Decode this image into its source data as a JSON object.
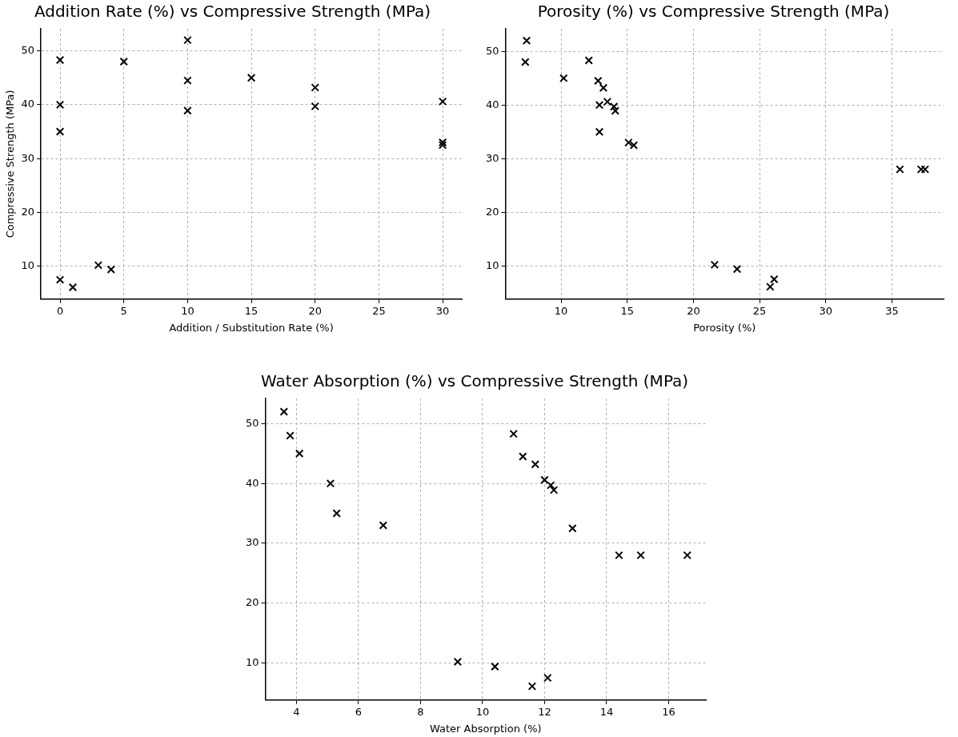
{
  "chart_data": [
    {
      "type": "scatter",
      "title": "Addition Rate (%) vs Compressive Strength (MPa)",
      "xlabel": "Addition / Substitution Rate (%)",
      "ylabel": "Compressive Strength (MPa)",
      "marker": "cross",
      "grid": true,
      "legend": false,
      "series": [
        {
          "color": "#000000",
          "x": [
            0,
            0,
            0,
            0,
            1,
            3,
            4,
            5,
            10,
            10,
            10,
            15,
            20,
            20,
            30,
            30,
            30
          ],
          "values": [
            48.3,
            40,
            35,
            7.5,
            6.1,
            10.2,
            9.4,
            48,
            52,
            44.5,
            38.9,
            45,
            43.2,
            39.7,
            40.6,
            33,
            32.5
          ]
        }
      ],
      "xlim": [
        -1.5,
        31.5
      ],
      "xticks": [
        0,
        5,
        10,
        15,
        20,
        25,
        30
      ],
      "ylim": [
        3.9,
        54.1
      ],
      "yticks": [
        10,
        20,
        30,
        40,
        50
      ]
    },
    {
      "type": "scatter",
      "title": "Porosity (%) vs Compressive Strength (MPa)",
      "xlabel": "Porosity (%)",
      "marker": "cross",
      "grid": true,
      "legend": false,
      "series": [
        {
          "color": "#000000",
          "x": [
            7.4,
            7.3,
            12.1,
            10.2,
            12.8,
            13.2,
            13.5,
            12.9,
            14.0,
            14.1,
            12.9,
            15.1,
            15.5,
            35.6,
            37.2,
            37.5,
            21.6,
            23.3,
            26.1,
            25.8
          ],
          "values": [
            52,
            48,
            48.3,
            45,
            44.5,
            43.2,
            40.6,
            40,
            39.7,
            38.9,
            35,
            33,
            32.5,
            28,
            28,
            28,
            10.2,
            9.4,
            7.5,
            6.1
          ]
        }
      ],
      "xlim": [
        5.8,
        38.9
      ],
      "xticks": [
        10,
        15,
        20,
        25,
        30,
        35
      ],
      "ylim": [
        3.8,
        54.2
      ],
      "yticks": [
        10,
        20,
        30,
        40,
        50
      ]
    },
    {
      "type": "scatter",
      "title": "Water Absorption (%) vs Compressive Strength (MPa)",
      "xlabel": "Water Absorption (%)",
      "marker": "cross",
      "grid": true,
      "legend": false,
      "series": [
        {
          "color": "#000000",
          "x": [
            3.6,
            3.8,
            4.1,
            5.1,
            5.3,
            6.8,
            11.0,
            11.3,
            11.7,
            12.0,
            12.2,
            12.3,
            12.9,
            14.4,
            15.1,
            16.6,
            9.2,
            10.4,
            11.6,
            12.1
          ],
          "values": [
            52,
            48,
            45,
            40,
            35,
            33,
            48.3,
            44.5,
            43.2,
            40.6,
            39.7,
            38.9,
            32.5,
            28,
            28,
            28,
            10.2,
            9.4,
            6.1,
            7.5
          ]
        }
      ],
      "xlim": [
        3.0,
        17.2
      ],
      "xticks": [
        4,
        6,
        8,
        10,
        12,
        14,
        16
      ],
      "ylim": [
        3.8,
        54.2
      ],
      "yticks": [
        10,
        20,
        30,
        40,
        50
      ]
    }
  ]
}
